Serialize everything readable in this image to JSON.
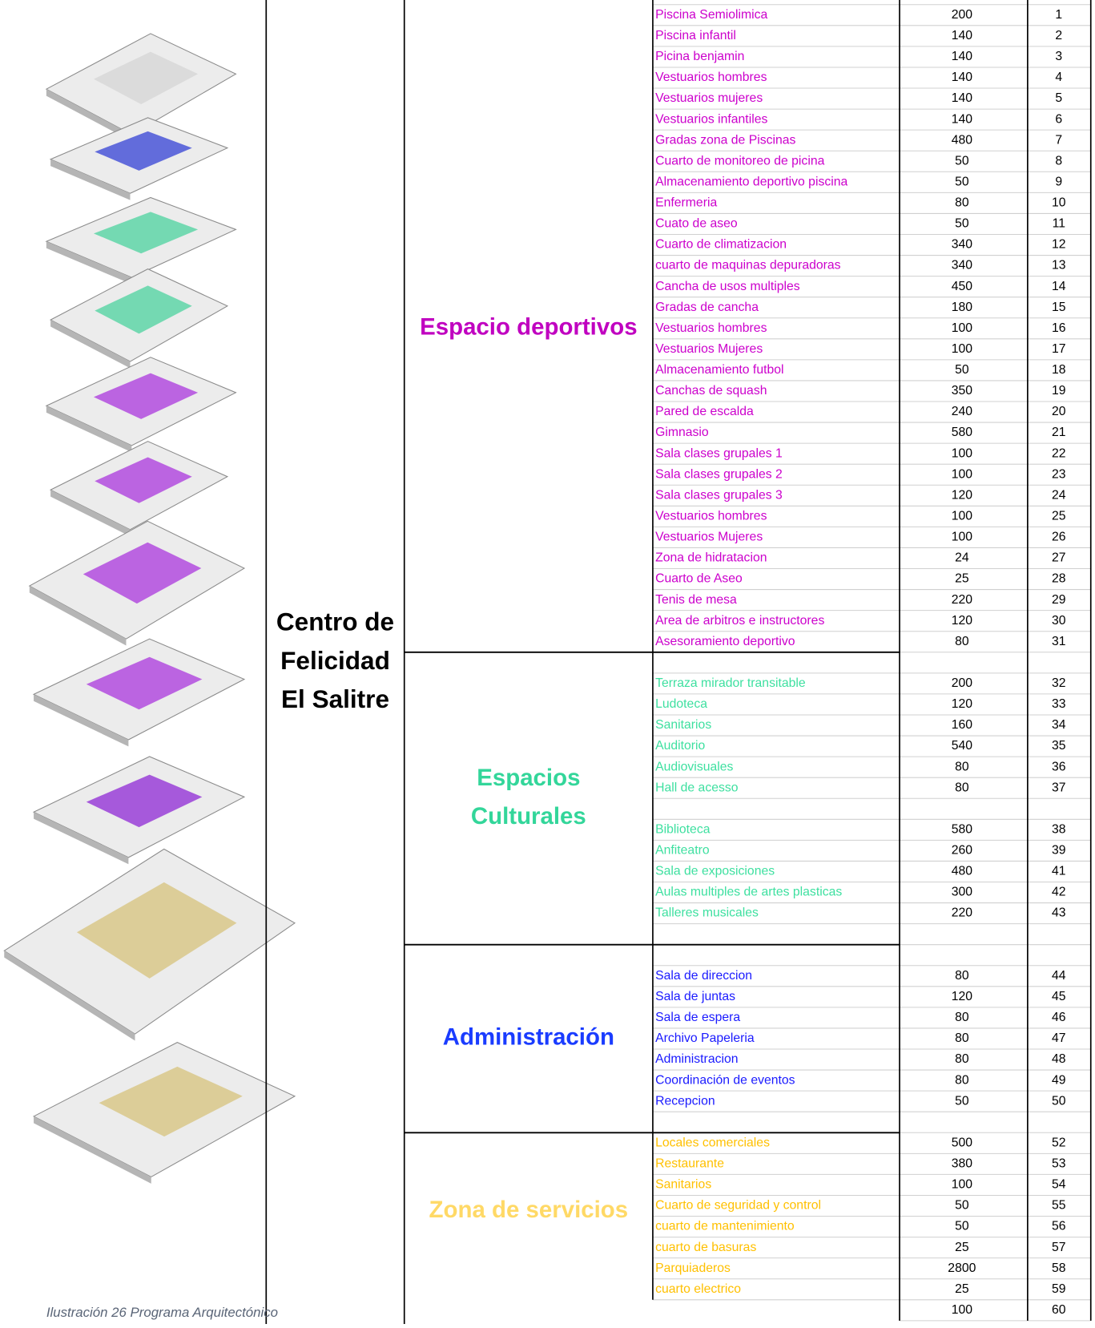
{
  "title_lines": [
    "Centro de",
    "Felicidad",
    "El Salitre"
  ],
  "caption": "Ilustración 26 Programa Arquitectónico",
  "groups": [
    {
      "label_lines": [
        "Espacio deportivos"
      ],
      "color": "#cc00cc",
      "label_color": "#c000c0",
      "rows": [
        [
          "Piscina Semiolimica",
          200,
          1
        ],
        [
          "Piscina infantil",
          140,
          2
        ],
        [
          "Picina benjamin",
          140,
          3
        ],
        [
          "Vestuarios hombres",
          140,
          4
        ],
        [
          "Vestuarios mujeres",
          140,
          5
        ],
        [
          "Vestuarios infantiles",
          140,
          6
        ],
        [
          "Gradas zona de Piscinas",
          480,
          7
        ],
        [
          "Cuarto de monitoreo de picina",
          50,
          8
        ],
        [
          "Almacenamiento deportivo piscina",
          50,
          9
        ],
        [
          "Enfermeria",
          80,
          10
        ],
        [
          "Cuato de aseo",
          50,
          11
        ],
        [
          "Cuarto de  climatizacion",
          340,
          12
        ],
        [
          "cuarto de maquinas depuradoras",
          340,
          13
        ],
        [
          "Cancha de usos multiples",
          450,
          14
        ],
        [
          "Gradas  de  cancha",
          180,
          15
        ],
        [
          "Vestuarios hombres",
          100,
          16
        ],
        [
          "Vestuarios Mujeres",
          100,
          17
        ],
        [
          "Almacenamiento futbol",
          50,
          18
        ],
        [
          "Canchas de squash",
          350,
          19
        ],
        [
          "Pared de escalda",
          240,
          20
        ],
        [
          "Gimnasio",
          580,
          21
        ],
        [
          "Sala clases grupales 1",
          100,
          22
        ],
        [
          "Sala clases grupales 2",
          100,
          23
        ],
        [
          "Sala clases grupales 3",
          120,
          24
        ],
        [
          "Vestuarios hombres",
          100,
          25
        ],
        [
          "Vestuarios Mujeres",
          100,
          26
        ],
        [
          "Zona de hidratacion",
          24,
          27
        ],
        [
          "Cuarto de Aseo",
          25,
          28
        ],
        [
          "Tenis de mesa",
          220,
          29
        ],
        [
          "Area de arbitros e instructores",
          120,
          30
        ],
        [
          "Asesoramiento deportivo",
          80,
          31
        ]
      ]
    },
    {
      "label_lines": [
        "Espacios",
        "Culturales"
      ],
      "color": "#3ee0a0",
      "label_color": "#33d69a",
      "rows": [
        [
          "Terraza mirador  transitable",
          200,
          32
        ],
        [
          "Ludoteca",
          120,
          33
        ],
        [
          "Sanitarios",
          160,
          34
        ],
        [
          "Auditorio",
          540,
          35
        ],
        [
          "Audiovisuales",
          80,
          36
        ],
        [
          "Hall de acesso",
          80,
          37
        ],
        [
          "Biblioteca",
          580,
          38
        ],
        [
          "Anfiteatro",
          260,
          39
        ],
        [
          "Sala de exposiciones",
          480,
          41
        ],
        [
          "Aulas  multiples de artes plasticas",
          300,
          42
        ],
        [
          "Talleres musicales",
          220,
          43
        ]
      ]
    },
    {
      "label_lines": [
        "Administración"
      ],
      "color": "#1a1aff",
      "label_color": "#1a3cff",
      "rows": [
        [
          "Sala de direccion",
          80,
          44
        ],
        [
          "Sala de juntas",
          120,
          45
        ],
        [
          "Sala de espera",
          80,
          46
        ],
        [
          "Archivo Papeleria",
          80,
          47
        ],
        [
          "Administracion",
          80,
          48
        ],
        [
          "Coordinación de eventos",
          80,
          49
        ],
        [
          "Recepcion",
          50,
          50
        ]
      ]
    },
    {
      "label_lines": [
        "Zona de servicios"
      ],
      "color": "#ffc000",
      "label_color": "#ffd966",
      "rows": [
        [
          "Locales comerciales",
          500,
          52
        ],
        [
          "Restaurante",
          380,
          53
        ],
        [
          "Sanitarios",
          100,
          54
        ],
        [
          "Cuarto de seguridad y control",
          50,
          55
        ],
        [
          "cuarto de mantenimiento",
          50,
          56
        ],
        [
          "cuarto de basuras",
          25,
          57
        ],
        [
          "Parquiaderos",
          2800,
          58
        ],
        [
          "cuarto electrico",
          25,
          59
        ]
      ]
    }
  ],
  "footer_row": [
    100,
    60
  ]
}
